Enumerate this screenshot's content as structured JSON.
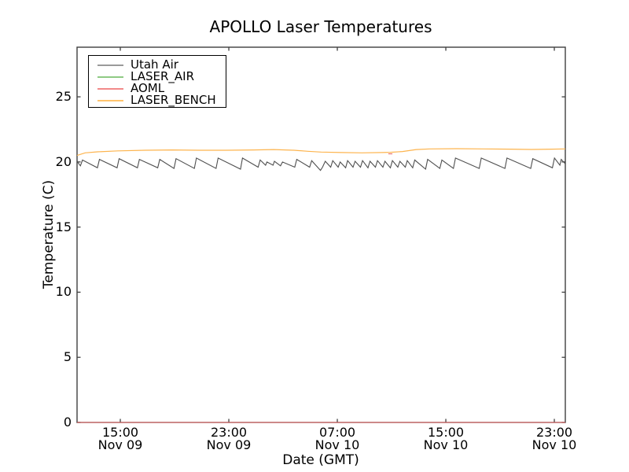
{
  "figure": {
    "background": "#ffffff",
    "axes_color": "#3f3f3f"
  },
  "chart_data": {
    "type": "line",
    "title": "APOLLO Laser Temperatures",
    "xlabel": "Date (GMT)",
    "ylabel": "Temperature (C)",
    "grid": false,
    "legend_position": "upper left",
    "xlim_hours": [
      0,
      36
    ],
    "ylim": [
      0,
      28.81
    ],
    "y_ticks": [
      0,
      5,
      10,
      15,
      20,
      25
    ],
    "x_ticks": [
      {
        "t": 3.19,
        "time": "15:00",
        "date": "Nov 09"
      },
      {
        "t": 11.19,
        "time": "23:00",
        "date": "Nov 09"
      },
      {
        "t": 19.19,
        "time": "07:00",
        "date": "Nov 10"
      },
      {
        "t": 27.19,
        "time": "15:00",
        "date": "Nov 10"
      },
      {
        "t": 35.19,
        "time": "23:00",
        "date": "Nov 10"
      }
    ],
    "series": [
      {
        "name": "Utah Air",
        "legend_color": "#9a9a9a",
        "line_color": "#4f4f4f",
        "width": 1.1,
        "segments": [
          [
            [
              0.0,
              20.1
            ],
            [
              0.1,
              19.9
            ],
            [
              0.25,
              19.7
            ],
            [
              0.4,
              20.15
            ],
            [
              1.5,
              19.55
            ],
            [
              1.65,
              20.2
            ],
            [
              2.95,
              19.55
            ],
            [
              3.1,
              20.25
            ],
            [
              4.45,
              19.55
            ],
            [
              4.6,
              20.2
            ],
            [
              5.95,
              19.55
            ],
            [
              6.1,
              20.2
            ],
            [
              7.15,
              19.5
            ],
            [
              7.3,
              20.25
            ],
            [
              8.65,
              19.5
            ],
            [
              8.8,
              20.3
            ],
            [
              10.25,
              19.5
            ],
            [
              10.4,
              20.3
            ],
            [
              12.05,
              19.45
            ],
            [
              12.2,
              20.3
            ],
            [
              13.35,
              19.6
            ],
            [
              13.5,
              20.15
            ],
            [
              13.9,
              19.75
            ],
            [
              14.0,
              20.0
            ],
            [
              14.45,
              19.75
            ],
            [
              14.55,
              20.05
            ],
            [
              15.0,
              19.7
            ],
            [
              15.15,
              20.0
            ],
            [
              16.05,
              19.6
            ],
            [
              16.2,
              20.2
            ],
            [
              17.15,
              19.6
            ],
            [
              17.3,
              20.1
            ],
            [
              17.95,
              19.35
            ],
            [
              18.1,
              19.6
            ],
            [
              18.3,
              20.05
            ],
            [
              18.7,
              19.6
            ],
            [
              18.85,
              20.1
            ],
            [
              19.25,
              19.6
            ],
            [
              19.4,
              20.0
            ],
            [
              19.8,
              19.55
            ],
            [
              19.95,
              20.1
            ],
            [
              20.35,
              19.6
            ],
            [
              20.5,
              20.05
            ],
            [
              20.9,
              19.6
            ],
            [
              21.05,
              20.1
            ],
            [
              21.45,
              19.55
            ],
            [
              21.6,
              20.05
            ],
            [
              22.0,
              19.6
            ],
            [
              22.15,
              20.1
            ],
            [
              22.55,
              19.6
            ],
            [
              22.7,
              20.05
            ],
            [
              23.1,
              19.55
            ],
            [
              23.25,
              20.1
            ],
            [
              23.65,
              19.6
            ],
            [
              23.8,
              20.05
            ],
            [
              24.2,
              19.6
            ],
            [
              24.35,
              20.1
            ],
            [
              24.75,
              19.55
            ],
            [
              24.9,
              20.15
            ],
            [
              25.7,
              19.45
            ],
            [
              25.85,
              20.2
            ],
            [
              26.75,
              19.5
            ],
            [
              26.9,
              20.15
            ],
            [
              27.75,
              19.5
            ],
            [
              27.9,
              20.3
            ],
            [
              29.65,
              19.5
            ],
            [
              29.8,
              20.3
            ],
            [
              31.55,
              19.5
            ],
            [
              31.7,
              20.3
            ],
            [
              33.45,
              19.5
            ],
            [
              33.6,
              20.25
            ],
            [
              35.05,
              19.55
            ],
            [
              35.2,
              20.3
            ],
            [
              35.6,
              19.75
            ],
            [
              35.7,
              20.2
            ],
            [
              36.0,
              19.85
            ]
          ]
        ]
      },
      {
        "name": "LASER_AIR",
        "legend_color": "#8fca84",
        "line_color": "#8fca84",
        "width": 1.0,
        "segments": [
          [
            [
              0,
              0
            ],
            [
              36,
              0
            ]
          ]
        ]
      },
      {
        "name": "AOML",
        "legend_color": "#f28a8a",
        "line_color": "#e86060",
        "width": 1.0,
        "segments": [
          [
            [
              0,
              0
            ],
            [
              36,
              0
            ]
          ],
          [
            [
              22.95,
              20.62
            ],
            [
              23.25,
              20.62
            ]
          ]
        ]
      },
      {
        "name": "LASER_BENCH",
        "legend_color": "#ffc46e",
        "line_color": "#fdb44e",
        "width": 1.2,
        "segments": [
          [
            [
              0,
              20.5
            ],
            [
              0.6,
              20.7
            ],
            [
              1.5,
              20.78
            ],
            [
              3,
              20.85
            ],
            [
              5,
              20.9
            ],
            [
              7,
              20.92
            ],
            [
              9,
              20.9
            ],
            [
              11,
              20.9
            ],
            [
              13,
              20.92
            ],
            [
              14.5,
              20.95
            ],
            [
              16,
              20.9
            ],
            [
              17,
              20.82
            ],
            [
              18,
              20.76
            ],
            [
              19.5,
              20.72
            ],
            [
              21,
              20.7
            ],
            [
              22.5,
              20.72
            ],
            [
              23.1,
              20.74
            ],
            [
              24,
              20.8
            ],
            [
              25,
              20.95
            ],
            [
              26,
              21.0
            ],
            [
              28,
              21.02
            ],
            [
              30,
              21.0
            ],
            [
              32,
              20.98
            ],
            [
              33.5,
              20.96
            ],
            [
              35,
              20.98
            ],
            [
              36,
              21.0
            ]
          ]
        ]
      }
    ]
  }
}
